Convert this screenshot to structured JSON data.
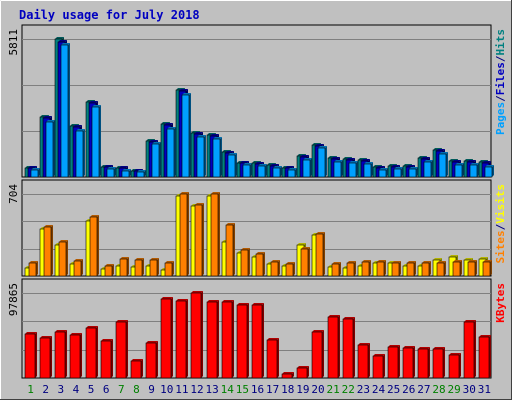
{
  "chart_data": {
    "type": "bar",
    "title": "Daily usage for July 2018",
    "categories": [
      "1",
      "2",
      "3",
      "4",
      "5",
      "6",
      "7",
      "8",
      "9",
      "10",
      "11",
      "12",
      "13",
      "14",
      "15",
      "16",
      "17",
      "18",
      "19",
      "20",
      "21",
      "22",
      "23",
      "24",
      "25",
      "26",
      "27",
      "28",
      "29",
      "30",
      "31"
    ],
    "weekend_days": [
      "1",
      "7",
      "8",
      "14",
      "15",
      "21",
      "22",
      "28",
      "29"
    ],
    "panels": [
      {
        "id": "hits",
        "ymax_label": "5811",
        "ymax": 5811,
        "legend": [
          {
            "text": "Pages",
            "color": "#00a0ff"
          },
          {
            "text": "/",
            "color": "#000080"
          },
          {
            "text": "Files",
            "color": "#0000c0"
          },
          {
            "text": "/",
            "color": "#000080"
          },
          {
            "text": "Hits",
            "color": "#008080"
          }
        ],
        "series": [
          {
            "name": "Hits",
            "color": "#008080",
            "values": [
              380,
              2540,
              5811,
              2140,
              3160,
              430,
              390,
              260,
              1510,
              2250,
              3680,
              1870,
              1760,
              1070,
              600,
              580,
              500,
              390,
              870,
              1360,
              780,
              760,
              700,
              410,
              460,
              470,
              800,
              1130,
              660,
              660,
              640
            ]
          },
          {
            "name": "Files",
            "color": "#0000c0",
            "values": [
              360,
              2480,
              5700,
              2090,
              3100,
              410,
              370,
              240,
              1470,
              2200,
              3620,
              1820,
              1710,
              1030,
              570,
              550,
              470,
              360,
              840,
              1310,
              740,
              720,
              660,
              380,
              430,
              440,
              760,
              1080,
              620,
              620,
              600
            ]
          },
          {
            "name": "Pages",
            "color": "#00a0ff",
            "values": [
              290,
              2320,
              5560,
              1920,
              2960,
              350,
              270,
              190,
              1400,
              2040,
              3450,
              1700,
              1580,
              920,
              490,
              480,
              400,
              280,
              720,
              1220,
              620,
              600,
              560,
              280,
              340,
              350,
              650,
              950,
              500,
              510,
              440
            ]
          }
        ]
      },
      {
        "id": "visits",
        "ymax_label": "704",
        "ymax": 704,
        "legend": [
          {
            "text": "Sites",
            "color": "#ff8000"
          },
          {
            "text": "/",
            "color": "#000080"
          },
          {
            "text": "Visits",
            "color": "#ffff00"
          }
        ],
        "series": [
          {
            "name": "Visits",
            "color": "#ffff00",
            "values": [
              70,
              400,
              270,
              100,
              470,
              60,
              90,
              80,
              90,
              50,
              690,
              600,
              690,
              290,
              200,
              160,
              100,
              90,
              270,
              350,
              80,
              70,
              90,
              110,
              110,
              90,
              90,
              140,
              160,
              140,
              150
            ]
          },
          {
            "name": "Sites",
            "color": "#ff8000",
            "values": [
              110,
              420,
              290,
              130,
              510,
              90,
              150,
              140,
              140,
              110,
              704,
              610,
              704,
              440,
              220,
              190,
              120,
              100,
              230,
              360,
              100,
              110,
              120,
              120,
              110,
              110,
              110,
              110,
              120,
              120,
              120
            ]
          }
        ]
      },
      {
        "id": "kbytes",
        "ymax_label": "97865",
        "ymax": 97865,
        "legend": [
          {
            "text": "KBytes",
            "color": "#ff0000"
          }
        ],
        "series": [
          {
            "name": "KBytes",
            "color": "#ff0000",
            "values": [
              51000,
              46000,
              53000,
              50000,
              58000,
              43000,
              64000,
              20000,
              40000,
              91000,
              89000,
              97865,
              87000,
              88000,
              84000,
              84000,
              44000,
              5000,
              11000,
              53000,
              70000,
              68000,
              38000,
              25000,
              36000,
              35000,
              33000,
              33000,
              27000,
              65000,
              47000
            ]
          }
        ]
      }
    ]
  }
}
